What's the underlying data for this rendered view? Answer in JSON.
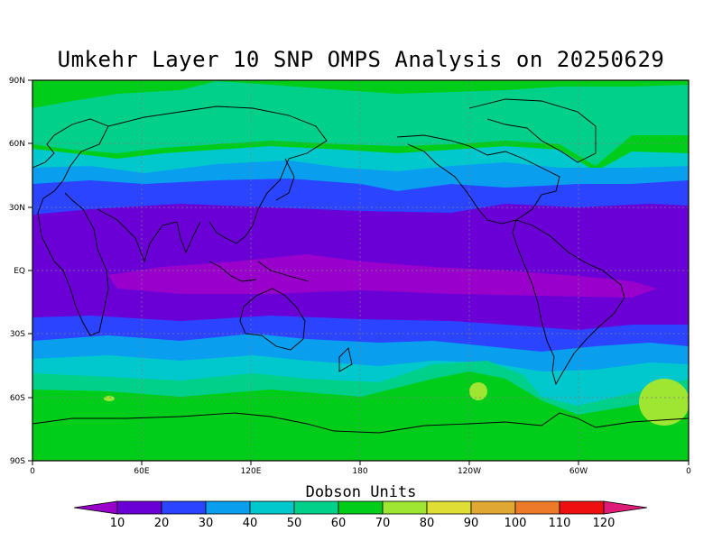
{
  "title": "Umkehr Layer 10 SNP OMPS Analysis on 20250629",
  "y_ticks": [
    "90N",
    "60N",
    "30N",
    "EQ",
    "30S",
    "60S",
    "90S"
  ],
  "x_ticks": [
    "0",
    "60E",
    "120E",
    "180",
    "120W",
    "60W",
    "0"
  ],
  "colorbar": {
    "label": "Dobson Units",
    "levels": [
      "10",
      "20",
      "30",
      "40",
      "50",
      "60",
      "70",
      "80",
      "90",
      "100",
      "110",
      "120"
    ],
    "colors": [
      "#9900cc",
      "#6a00d6",
      "#2a44ff",
      "#0a9fee",
      "#00c8cc",
      "#00d08a",
      "#00cc1a",
      "#9ee632",
      "#dede34",
      "#e0a833",
      "#ec7a28",
      "#ee1010",
      "#dd1c77"
    ]
  }
}
